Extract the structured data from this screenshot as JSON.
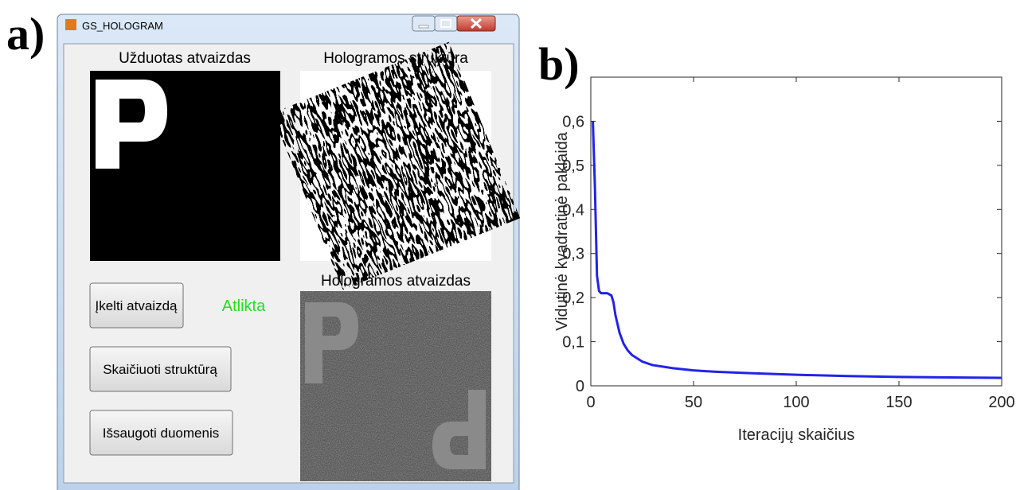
{
  "panel_labels": [
    "a)",
    "b)"
  ],
  "window": {
    "title": "GS_HOLOGRAM",
    "image_titles": [
      "Užduotas atvaizdas",
      "Hologramos struktūra",
      "Hologramos atvaizdas"
    ],
    "buttons": [
      "Įkelti atvaizdą",
      "Skaičiuoti struktūrą",
      "Išsaugoti duomenis"
    ],
    "status": "Atlikta"
  },
  "chart_data": {
    "type": "line",
    "x_label": "Iteracijų skaičius",
    "y_label": "Vidutinė kvadratinė paklaida",
    "x": [
      1,
      2,
      3,
      4,
      5,
      8,
      10,
      11,
      12,
      14,
      16,
      18,
      20,
      25,
      30,
      40,
      50,
      60,
      75,
      100,
      125,
      150,
      175,
      200
    ],
    "series": [
      {
        "color": "#2323e6",
        "values": [
          0.6,
          0.45,
          0.25,
          0.215,
          0.21,
          0.21,
          0.205,
          0.19,
          0.16,
          0.12,
          0.095,
          0.08,
          0.07,
          0.055,
          0.047,
          0.04,
          0.035,
          0.032,
          0.029,
          0.025,
          0.022,
          0.02,
          0.019,
          0.018
        ]
      }
    ],
    "xlim": [
      0,
      200
    ],
    "ylim": [
      0,
      0.7
    ],
    "xticks": [
      0,
      50,
      100,
      150,
      200
    ],
    "yticks": [
      0,
      {
        "value": 0.1,
        "label": "0,1"
      },
      {
        "value": 0.2,
        "label": "0,2"
      },
      {
        "value": 0.3,
        "label": "0,3"
      },
      {
        "value": 0.4,
        "label": "0,4"
      },
      {
        "value": 0.5,
        "label": "0,5"
      },
      {
        "value": 0.6,
        "label": "0,6"
      }
    ],
    "grid": false
  }
}
